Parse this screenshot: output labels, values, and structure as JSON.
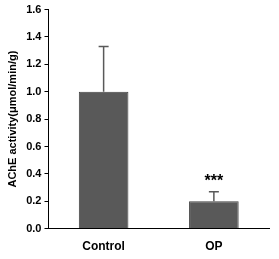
{
  "chart_data": {
    "type": "bar",
    "y_label": "AChE activity(μmol/min/g)",
    "categories": [
      "Control",
      "OP"
    ],
    "values": [
      1.0,
      0.2
    ],
    "errors": [
      0.33,
      0.07
    ],
    "color": "#595959",
    "ylim": [
      0,
      1.6
    ],
    "yticks": [
      {
        "value": 0,
        "label": "0.0"
      },
      {
        "value": 0.2,
        "label": "0.2"
      },
      {
        "value": 0.4,
        "label": "0.4"
      },
      {
        "value": 0.6,
        "label": "0.6"
      },
      {
        "value": 0.8,
        "label": "0.8"
      },
      {
        "value": 1.0,
        "label": "1.0"
      },
      {
        "value": 1.2,
        "label": "1.2"
      },
      {
        "value": 1.4,
        "label": "1.4"
      },
      {
        "value": 1.6,
        "label": "1.6"
      }
    ],
    "annotations": [
      {
        "text": "***",
        "category": "OP"
      }
    ],
    "grid": false
  }
}
